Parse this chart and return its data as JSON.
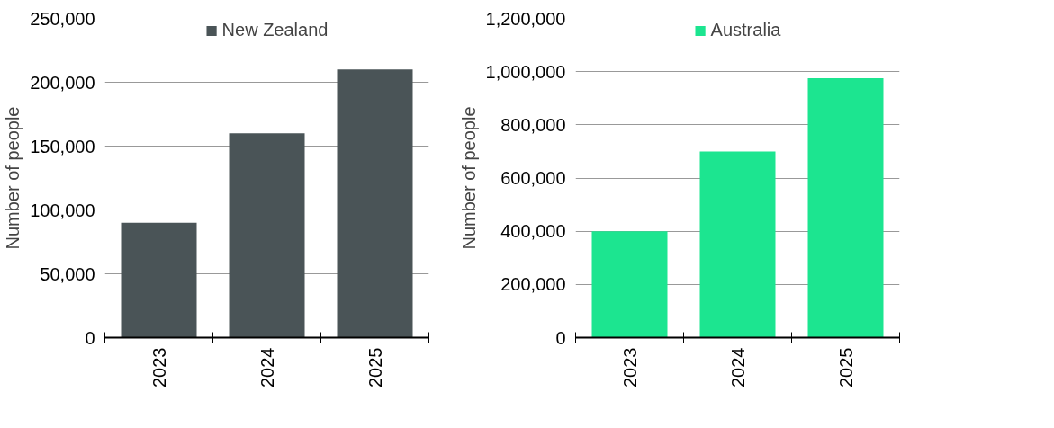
{
  "chart_data": [
    {
      "type": "bar",
      "categories": [
        "2023",
        "2024",
        "2025"
      ],
      "ylabel": "Number of people",
      "series": [
        {
          "name": "New Zealand",
          "color": "#4a5457",
          "values": [
            90000,
            160000,
            210000
          ]
        }
      ],
      "ylim": [
        0,
        250000
      ],
      "yticks": [
        0,
        {
          "value": 50000,
          "label": "50,000"
        },
        {
          "value": 100000,
          "label": "100,000"
        },
        {
          "value": 150000,
          "label": "150,000"
        },
        {
          "value": 200000,
          "label": "200,000"
        },
        {
          "value": 250000,
          "label": "250,000"
        }
      ],
      "grid": "y",
      "legend": "top"
    },
    {
      "type": "bar",
      "categories": [
        "2023",
        "2024",
        "2025"
      ],
      "ylabel": "Number of people",
      "series": [
        {
          "name": "Australia",
          "color": "#1ce590",
          "values": [
            400000,
            700000,
            975000
          ]
        }
      ],
      "ylim": [
        0,
        1200000
      ],
      "yticks": [
        0,
        {
          "value": 200000,
          "label": "200,000"
        },
        {
          "value": 400000,
          "label": "400,000"
        },
        {
          "value": 600000,
          "label": "600,000"
        },
        {
          "value": 800000,
          "label": "800,000"
        },
        {
          "value": 1000000,
          "label": "1,000,000"
        },
        {
          "value": 1200000,
          "label": "1,200,000"
        }
      ],
      "grid": "y",
      "legend": "top"
    }
  ]
}
